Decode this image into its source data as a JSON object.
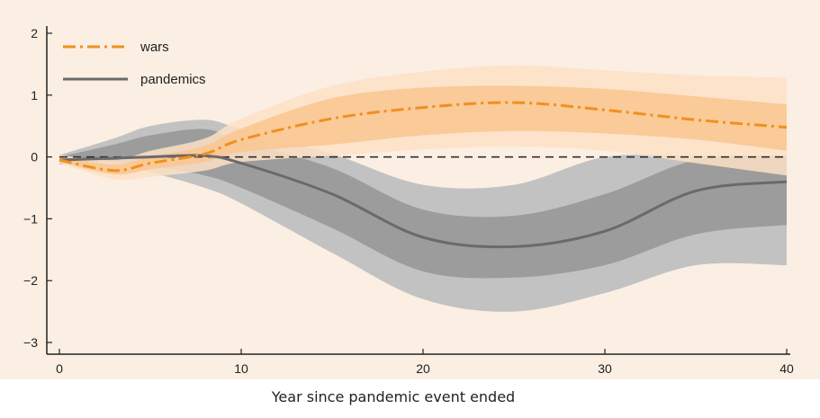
{
  "chart_data": {
    "type": "line",
    "title": "",
    "xlabel": "Year since pandemic event ended",
    "ylabel": "",
    "xlim": [
      0,
      40
    ],
    "ylim": [
      -3,
      2
    ],
    "x_ticks": [
      0,
      10,
      20,
      30,
      40
    ],
    "y_ticks": [
      2,
      1,
      0,
      -1,
      -2,
      -3
    ],
    "y_tick_labels": [
      "2",
      "1",
      "0",
      "−1",
      "−2",
      "−3"
    ],
    "reference_line": 0,
    "legend": {
      "placement": "top-left",
      "entries": [
        "wars",
        "pandemics"
      ]
    },
    "colors": {
      "background": "#fbeee2",
      "wars_line": "#f0901e",
      "wars_band_inner": "#fac792",
      "wars_band_outer": "#fde0c5",
      "pandemics_line": "#6a6a6a",
      "pandemics_band_inner": "#8f8f8f",
      "pandemics_band_outer": "#c2c2c2",
      "axis": "#222222",
      "reference": "#222222"
    },
    "x": [
      0,
      3,
      5,
      8,
      10,
      15,
      20,
      25,
      30,
      35,
      40
    ],
    "series": [
      {
        "name": "wars",
        "style": "dash-dot",
        "values": [
          -0.05,
          -0.22,
          -0.1,
          0.05,
          0.28,
          0.62,
          0.8,
          0.88,
          0.76,
          0.6,
          0.48
        ],
        "band_inner": {
          "lower": [
            -0.08,
            -0.28,
            -0.2,
            -0.08,
            0.08,
            0.2,
            0.35,
            0.42,
            0.38,
            0.28,
            0.1
          ],
          "upper": [
            0.0,
            -0.12,
            0.0,
            0.18,
            0.46,
            0.95,
            1.12,
            1.15,
            1.1,
            0.98,
            0.85
          ]
        },
        "band_outer": {
          "lower": [
            -0.1,
            -0.36,
            -0.32,
            -0.22,
            -0.08,
            0.02,
            0.12,
            0.17,
            0.1,
            -0.1,
            -0.3
          ],
          "upper": [
            0.03,
            -0.05,
            0.1,
            0.3,
            0.62,
            1.15,
            1.38,
            1.48,
            1.4,
            1.32,
            1.28
          ]
        }
      },
      {
        "name": "pandemics",
        "style": "solid",
        "values": [
          -0.05,
          -0.02,
          0.0,
          0.02,
          -0.1,
          -0.6,
          -1.3,
          -1.45,
          -1.2,
          -0.55,
          -0.4
        ],
        "band_inner": {
          "lower": [
            -0.1,
            -0.08,
            -0.15,
            -0.3,
            -0.5,
            -1.15,
            -1.85,
            -1.95,
            -1.75,
            -1.25,
            -1.1
          ],
          "upper": [
            0.0,
            0.2,
            0.35,
            0.45,
            0.25,
            -0.18,
            -0.85,
            -0.95,
            -0.6,
            -0.05,
            0.02
          ]
        },
        "band_outer": {
          "lower": [
            -0.12,
            -0.15,
            -0.25,
            -0.5,
            -0.75,
            -1.55,
            -2.3,
            -2.5,
            -2.2,
            -1.75,
            -1.75
          ],
          "upper": [
            0.03,
            0.3,
            0.5,
            0.6,
            0.45,
            0.05,
            -0.45,
            -0.45,
            0.0,
            0.02,
            0.02
          ]
        }
      }
    ]
  }
}
